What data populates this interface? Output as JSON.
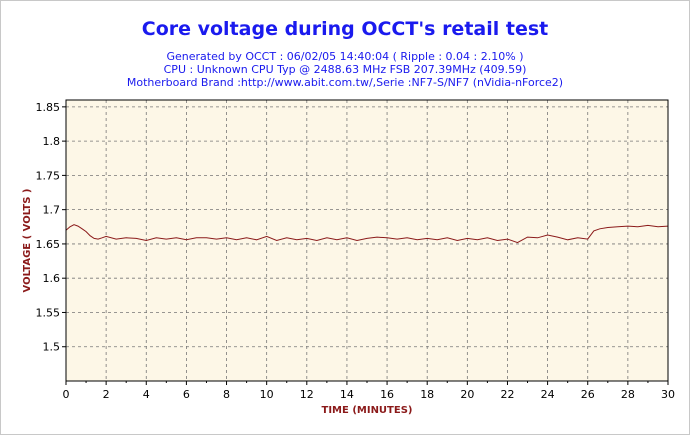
{
  "chart_data": {
    "type": "line",
    "title": "Core voltage during OCCT's retail test",
    "subtitle_lines": [
      "Generated by OCCT : 06/02/05 14:40:04 ( Ripple : 0.04 : 2.10% )",
      "CPU : Unknown CPU Typ @ 2488.63 MHz FSB 207.39MHz (409.59)",
      "Motherboard Brand :http://www.abit.com.tw/,Serie :NF7-S/NF7 (nVidia-nForce2)"
    ],
    "xlabel": "TIME (MINUTES)",
    "ylabel": "VOLTAGE ( VOLTS )",
    "xlim": [
      0,
      30
    ],
    "ylim": [
      1.45,
      1.86
    ],
    "x_ticks": [
      "0",
      "2",
      "4",
      "6",
      "8",
      "10",
      "12",
      "14",
      "16",
      "18",
      "20",
      "22",
      "24",
      "26",
      "28",
      "30"
    ],
    "y_ticks": [
      "1.5",
      "1.55",
      "1.6",
      "1.65",
      "1.7",
      "1.75",
      "1.8",
      "1.85"
    ],
    "grid": true,
    "colors": {
      "line": "#8b1a1a",
      "plot_bg": "#fdf7e7",
      "title": "#1a1aee",
      "axis_label": "#8b1a1a"
    },
    "series": [
      {
        "x": [
          0,
          0.2,
          0.4,
          0.6,
          0.8,
          1,
          1.2,
          1.4,
          1.6,
          1.8,
          2,
          2.5,
          3,
          3.5,
          4,
          4.5,
          5,
          5.5,
          6,
          6.5,
          7,
          7.5,
          8,
          8.5,
          9,
          9.5,
          10,
          10.5,
          11,
          11.5,
          12,
          12.5,
          13,
          13.5,
          14,
          14.5,
          15,
          15.5,
          16,
          16.5,
          17,
          17.5,
          18,
          18.5,
          19,
          19.5,
          20,
          20.5,
          21,
          21.5,
          22,
          22.5,
          23,
          23.5,
          24,
          24.5,
          25,
          25.5,
          26,
          26.3,
          26.6,
          27,
          27.5,
          28,
          28.5,
          29,
          29.5,
          30
        ],
        "y": [
          1.67,
          1.675,
          1.678,
          1.676,
          1.672,
          1.668,
          1.662,
          1.658,
          1.657,
          1.659,
          1.661,
          1.657,
          1.659,
          1.658,
          1.655,
          1.659,
          1.657,
          1.659,
          1.656,
          1.659,
          1.659,
          1.657,
          1.659,
          1.656,
          1.659,
          1.656,
          1.661,
          1.655,
          1.659,
          1.656,
          1.658,
          1.655,
          1.659,
          1.656,
          1.659,
          1.655,
          1.658,
          1.66,
          1.659,
          1.657,
          1.659,
          1.656,
          1.658,
          1.656,
          1.659,
          1.655,
          1.658,
          1.656,
          1.659,
          1.655,
          1.657,
          1.652,
          1.66,
          1.659,
          1.663,
          1.66,
          1.656,
          1.659,
          1.657,
          1.669,
          1.672,
          1.674,
          1.675,
          1.676,
          1.675,
          1.677,
          1.675,
          1.676
        ]
      }
    ]
  }
}
